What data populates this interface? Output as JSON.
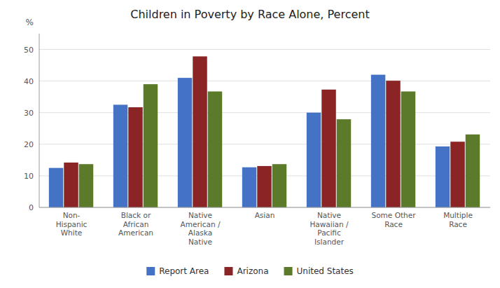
{
  "chart_data": {
    "type": "bar",
    "title": "Children in Poverty by Race Alone, Percent",
    "ylabel": "%",
    "categories": [
      "Non-\nHispanic\nWhite",
      "Black or\nAfrican\nAmerican",
      "Native\nAmerican /\nAlaska\nNative",
      "Asian",
      "Native\nHawaiian /\nPacific\nIslander",
      "Some Other\nRace",
      "Multiple\nRace"
    ],
    "series": [
      {
        "name": "Report Area",
        "color": "#4472C4",
        "values": [
          12.5,
          32.5,
          41.0,
          12.7,
          30.0,
          42.0,
          19.3
        ]
      },
      {
        "name": "Arizona",
        "color": "#8B2525",
        "values": [
          14.2,
          31.7,
          47.8,
          13.1,
          37.3,
          40.1,
          20.8
        ]
      },
      {
        "name": "United States",
        "color": "#5B7A2A",
        "values": [
          13.7,
          39.0,
          36.7,
          13.7,
          27.9,
          36.7,
          23.1
        ]
      }
    ],
    "ylim": [
      0,
      55
    ],
    "yticks": [
      0,
      10,
      20,
      30,
      40,
      50
    ],
    "grid": true,
    "legend": "bottom"
  }
}
